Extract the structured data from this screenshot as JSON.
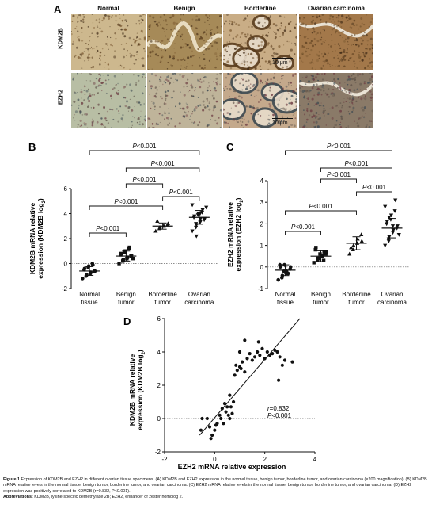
{
  "panel_a": {
    "letter": "A",
    "columns": [
      "Normal",
      "Benign",
      "Borderline",
      "Ovarian carcinoma"
    ],
    "rows": [
      "KDM2B",
      "EZH2"
    ],
    "scale_bar": "10 μm",
    "tissue_colors": {
      "kdm2b": [
        "#cdb88e",
        "#a68a58",
        "#c9ad86",
        "#a3784a"
      ],
      "ezh2": [
        "#b8bea4",
        "#bfb49a",
        "#c4a98c",
        "#8a7a68"
      ]
    }
  },
  "chart_data": [
    {
      "type": "scatter",
      "panel": "B",
      "categories": [
        "Normal\ntissue",
        "Benign\ntumor",
        "Borderline\ntumor",
        "Ovarian\ncarcinoma"
      ],
      "ylabel": "KDM2B mRNA relative\nexpression (KDM2B log2)",
      "ylim": [
        -2,
        6
      ],
      "yticks": [
        -2,
        0,
        2,
        4,
        6
      ],
      "means": [
        -0.6,
        0.6,
        3.0,
        3.7
      ],
      "sd": [
        0.35,
        0.4,
        0.25,
        0.55
      ],
      "points": [
        [
          -1.2,
          -1.0,
          -0.9,
          -0.8,
          -0.7,
          -0.6,
          -0.6,
          -0.5,
          -0.4,
          -0.3,
          -0.2,
          0.0,
          -0.1
        ],
        [
          0.0,
          0.2,
          0.3,
          0.4,
          0.5,
          0.6,
          0.6,
          0.7,
          0.8,
          0.9,
          1.0,
          1.2,
          1.3,
          0.4
        ],
        [
          2.6,
          2.8,
          2.9,
          3.0,
          3.0,
          3.1,
          3.2,
          3.4
        ],
        [
          2.6,
          2.9,
          3.1,
          3.3,
          3.4,
          3.5,
          3.6,
          3.7,
          3.8,
          3.9,
          4.0,
          4.1,
          4.3,
          4.5,
          4.7,
          3.2,
          2.2,
          4.0,
          3.6
        ]
      ],
      "comparisons": [
        {
          "from": 0,
          "to": 3,
          "label": "P<0.001"
        },
        {
          "from": 1,
          "to": 3,
          "label": "P<0.001"
        },
        {
          "from": 1,
          "to": 2,
          "label": "P<0.001"
        },
        {
          "from": 0,
          "to": 2,
          "label": "P<0.001"
        },
        {
          "from": 2,
          "to": 3,
          "label": "P<0.001"
        },
        {
          "from": 0,
          "to": 1,
          "label": "P<0.001"
        }
      ]
    },
    {
      "type": "scatter",
      "panel": "C",
      "categories": [
        "Normal\ntissue",
        "Benign\ntumor",
        "Borderline\ntumor",
        "Ovarian\ncarcinoma"
      ],
      "ylabel": "EZH2 mRNA relative\nexpression (EZH2 log2)",
      "ylim": [
        -1,
        4
      ],
      "yticks": [
        -1,
        0,
        1,
        2,
        3,
        4
      ],
      "means": [
        -0.15,
        0.5,
        1.1,
        1.8
      ],
      "sd": [
        0.25,
        0.25,
        0.3,
        0.45
      ],
      "points": [
        [
          -0.6,
          -0.5,
          -0.4,
          -0.3,
          -0.2,
          -0.1,
          0.0,
          0.1,
          0.0,
          -0.2,
          0.1,
          -0.3
        ],
        [
          0.2,
          0.3,
          0.4,
          0.5,
          0.5,
          0.6,
          0.7,
          0.8,
          0.9,
          0.4,
          0.6,
          0.3,
          0.7
        ],
        [
          0.6,
          0.8,
          1.0,
          1.1,
          1.3,
          1.5,
          1.2,
          0.9
        ],
        [
          1.0,
          1.2,
          1.4,
          1.6,
          1.7,
          1.8,
          1.9,
          2.0,
          2.1,
          2.2,
          2.4,
          2.6,
          3.1,
          1.5,
          2.8,
          1.3,
          2.3,
          1.9
        ]
      ],
      "comparisons": [
        {
          "from": 0,
          "to": 3,
          "label": "P<0.001"
        },
        {
          "from": 1,
          "to": 3,
          "label": "P<0.001"
        },
        {
          "from": 1,
          "to": 2,
          "label": "P<0.001"
        },
        {
          "from": 2,
          "to": 3,
          "label": "P<0.001"
        },
        {
          "from": 0,
          "to": 2,
          "label": "P<0.001"
        },
        {
          "from": 0,
          "to": 1,
          "label": "P<0.001"
        }
      ]
    },
    {
      "type": "scatter",
      "panel": "D",
      "xlabel": "EZH2 mRNA relative expression\n(EZH2 log2)",
      "ylabel": "KDM2B mRNA relative\nexpression (KDM2B log2)",
      "xlim": [
        -1,
        4
      ],
      "ylim": [
        -2,
        6
      ],
      "xticks": [
        -2,
        0,
        2,
        4
      ],
      "yticks": [
        -2,
        0,
        2,
        4,
        6
      ],
      "annotation": [
        "r=0.832",
        "P<0.001"
      ],
      "fit": {
        "slope": 1.75,
        "intercept": 0.05
      },
      "points": [
        [
          -0.55,
          -0.7
        ],
        [
          -0.5,
          0.0
        ],
        [
          -0.3,
          0.0
        ],
        [
          -0.2,
          -0.5
        ],
        [
          -0.15,
          -1.2
        ],
        [
          -0.1,
          -1.0
        ],
        [
          0.0,
          -0.7
        ],
        [
          0.05,
          -0.4
        ],
        [
          0.1,
          -0.3
        ],
        [
          0.2,
          0.2
        ],
        [
          0.25,
          0.0
        ],
        [
          0.3,
          0.6
        ],
        [
          0.35,
          -0.3
        ],
        [
          0.4,
          0.9
        ],
        [
          0.45,
          0.4
        ],
        [
          0.5,
          0.7
        ],
        [
          0.55,
          0.2
        ],
        [
          0.6,
          0.0
        ],
        [
          0.65,
          0.7
        ],
        [
          0.7,
          0.3
        ],
        [
          0.75,
          1.0
        ],
        [
          0.6,
          1.4
        ],
        [
          0.8,
          2.6
        ],
        [
          0.85,
          3.2
        ],
        [
          0.9,
          2.9
        ],
        [
          1.0,
          3.1
        ],
        [
          1.05,
          3.0
        ],
        [
          1.1,
          3.4
        ],
        [
          1.2,
          2.8
        ],
        [
          1.3,
          3.6
        ],
        [
          1.4,
          3.9
        ],
        [
          1.5,
          3.5
        ],
        [
          1.6,
          3.7
        ],
        [
          1.7,
          4.0
        ],
        [
          1.8,
          3.8
        ],
        [
          1.9,
          4.2
        ],
        [
          2.0,
          3.6
        ],
        [
          2.1,
          4.0
        ],
        [
          2.2,
          3.8
        ],
        [
          2.3,
          3.9
        ],
        [
          2.4,
          4.1
        ],
        [
          2.5,
          4.0
        ],
        [
          2.6,
          3.7
        ],
        [
          2.7,
          3.2
        ],
        [
          2.8,
          3.5
        ],
        [
          3.1,
          3.4
        ],
        [
          2.55,
          2.3
        ],
        [
          1.75,
          4.6
        ],
        [
          1.2,
          4.7
        ],
        [
          1.0,
          4.0
        ]
      ]
    }
  ],
  "caption": {
    "figure_label": "Figure 1",
    "line1": " Expression of KDM2B and EZH2 in different ovarian tissue specimens. (A) KDM2B and EZH2 expression in the normal tissue, benign tumor, borderline tumor, and ovarian carcinoma (×200 magnification). (B) KDM2B mRNA relative levels in the normal tissue, benign tumor, borderline tumor, and ovarian carcinoma. (C) EZH2 mRNA relative levels in the normal tissue, benign tumor, borderline tumor, and ovarian carcinoma. (D) EZH2 expression was positively correlated to KDM2B (r=0.832, P<0.001).",
    "abbr_label": "Abbreviations:",
    "abbr": " KDM2B, lysine-specific demethylase 2B; EZH2, enhancer of zester homolog 2."
  }
}
